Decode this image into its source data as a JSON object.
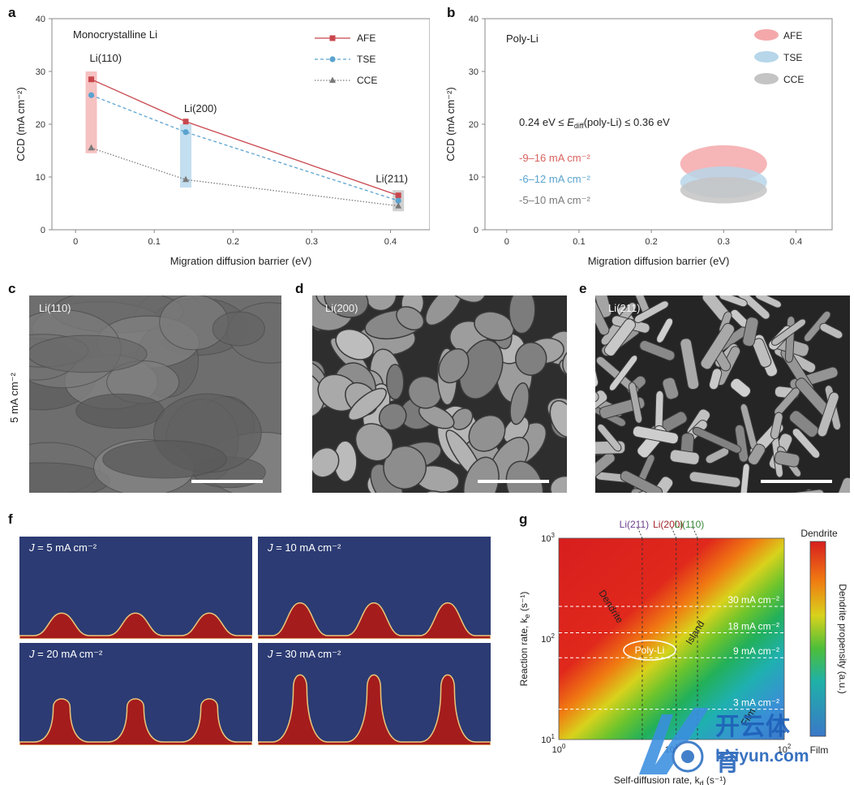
{
  "panel_labels": {
    "a": "a",
    "b": "b",
    "c": "c",
    "d": "d",
    "e": "e",
    "f": "f",
    "g": "g"
  },
  "panel_a": {
    "inset_title": "Monocrystalline Li",
    "chart_data": {
      "type": "line",
      "xlabel": "Migration diffusion barrier (eV)",
      "ylabel": "CCD (mA cm⁻²)",
      "xlim": [
        -0.03,
        0.45
      ],
      "ylim": [
        0,
        40
      ],
      "xticks": [
        "0",
        "0.1",
        "0.2",
        "0.3",
        "0.4"
      ],
      "yticks": [
        "0",
        "10",
        "20",
        "30",
        "40"
      ],
      "x": [
        0.02,
        0.14,
        0.41
      ],
      "point_labels": [
        "Li(110)",
        "Li(200)",
        "Li(211)"
      ],
      "series": [
        {
          "name": "AFE",
          "values": [
            28.5,
            20.5,
            6.5
          ],
          "color": "#c8464d",
          "dash": "solid",
          "marker": "square"
        },
        {
          "name": "TSE",
          "values": [
            25.5,
            18.5,
            5.5
          ],
          "color": "#5aa3cf",
          "dash": "dashed",
          "marker": "circle"
        },
        {
          "name": "CCE",
          "values": [
            15.5,
            9.5,
            4.5
          ],
          "color": "#7a7a7a",
          "dash": "dotted",
          "marker": "triangle"
        }
      ],
      "shaded_ranges": [
        {
          "x": 0.02,
          "ymin": 14.5,
          "ymax": 30,
          "color": "#f4b6b6"
        },
        {
          "x": 0.14,
          "ymin": 8,
          "ymax": 20,
          "color": "#b9d8ec"
        },
        {
          "x": 0.41,
          "ymin": 3.5,
          "ymax": 7.5,
          "color": "#c9c9c9"
        }
      ],
      "legend": "top-right"
    }
  },
  "panel_b": {
    "inset_title": "Poly-Li",
    "range_text_prefix": "0.24 eV ≤ ",
    "range_text_var": "E",
    "range_text_sub": "diff",
    "range_text_suffix": "(poly-Li) ≤ 0.36 eV",
    "ranges": [
      {
        "text": "-9–16 mA cm⁻²",
        "color": "#d9645f"
      },
      {
        "text": "-6–12 mA cm⁻²",
        "color": "#5aa3cf"
      },
      {
        "text": "-5–10 mA cm⁻²",
        "color": "#7a7a7a"
      }
    ],
    "chart_data": {
      "type": "scatter",
      "xlabel": "Migration diffusion barrier (eV)",
      "ylabel": "CCD (mA cm⁻²)",
      "xlim": [
        -0.03,
        0.45
      ],
      "ylim": [
        0,
        40
      ],
      "xticks": [
        "0",
        "0.1",
        "0.2",
        "0.3",
        "0.4"
      ],
      "yticks": [
        "0",
        "10",
        "20",
        "30",
        "40"
      ],
      "legend": "top-right",
      "series": [
        {
          "name": "AFE",
          "x_range": [
            0.24,
            0.36
          ],
          "y_range": [
            9,
            16
          ],
          "color": "#f4a8aa"
        },
        {
          "name": "TSE",
          "x_range": [
            0.24,
            0.36
          ],
          "y_range": [
            6,
            12
          ],
          "color": "#b7d6ea"
        },
        {
          "name": "CCE",
          "x_range": [
            0.24,
            0.36
          ],
          "y_range": [
            5,
            10
          ],
          "color": "#c4c4c4"
        }
      ]
    }
  },
  "sem_row": {
    "side_label": "5 mA cm⁻²",
    "images": [
      {
        "label": "Li(110)",
        "texture": "smooth"
      },
      {
        "label": "Li(200)",
        "texture": "granular"
      },
      {
        "label": "Li(211)",
        "texture": "rod"
      }
    ]
  },
  "panel_f": {
    "frames": [
      {
        "prefix": "J",
        "label": " = 5 mA cm⁻²",
        "height": 0.22
      },
      {
        "prefix": "J",
        "label": " = 10 mA cm⁻²",
        "height": 0.32
      },
      {
        "prefix": "J",
        "label": " = 20 mA cm⁻²",
        "height": 0.45
      },
      {
        "prefix": "J",
        "label": " = 30 mA cm⁻²",
        "height": 0.7
      }
    ],
    "colors": {
      "background": "#2c3b73",
      "deposit": "#a51c1c"
    }
  },
  "panel_g": {
    "chart_data": {
      "type": "heatmap",
      "xlabel": "Self-diffusion rate, k",
      "xlabel_sub": "d",
      "xlabel_unit": " (s⁻¹)",
      "ylabel": "Reaction rate, k",
      "ylabel_sub": "e",
      "ylabel_unit": " (s⁻¹)",
      "x_log": true,
      "y_log": true,
      "xlim": [
        1,
        100
      ],
      "ylim": [
        10,
        1000
      ],
      "xticks": [
        {
          "base": "10",
          "exp": "0",
          "value": 1
        },
        {
          "base": "10",
          "exp": "1",
          "value": 10
        },
        {
          "base": "10",
          "exp": "2",
          "value": 100
        }
      ],
      "yticks": [
        {
          "base": "10",
          "exp": "1",
          "value": 10
        },
        {
          "base": "10",
          "exp": "2",
          "value": 100
        },
        {
          "base": "10",
          "exp": "3",
          "value": 1000
        }
      ],
      "vlines": [
        {
          "label": "Li(211)",
          "x": 5.5,
          "color": "#6a3f8e"
        },
        {
          "label": "Li(200)",
          "x": 11,
          "color": "#a0242a"
        },
        {
          "label": "Li(110)",
          "x": 17,
          "color": "#3a8a3a"
        }
      ],
      "hlines": [
        {
          "label": "30 mA cm⁻²",
          "y": 210
        },
        {
          "label": "18 mA cm⁻²",
          "y": 115
        },
        {
          "label": "9 mA cm⁻²",
          "y": 65
        },
        {
          "label": "3 mA cm⁻²",
          "y": 20
        }
      ],
      "region_labels": [
        "Dendrite",
        "Island",
        "Film"
      ],
      "ellipse_label": "Poly-Li",
      "colorbar_title": "Dendrite propensity (a.u.)",
      "colorbar_top": "Dendrite",
      "colorbar_bottom": "Film"
    }
  },
  "watermark": {
    "cn": "开云体育",
    "en": "kaiyun.com"
  }
}
